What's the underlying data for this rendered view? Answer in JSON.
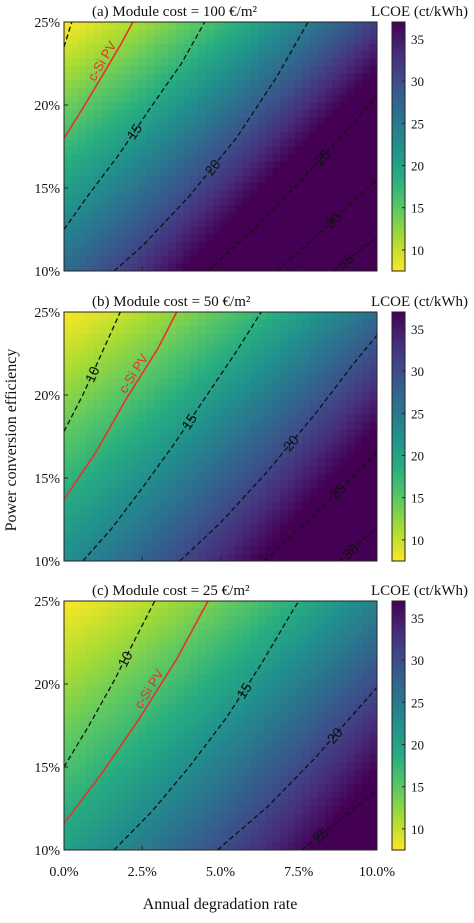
{
  "colors": {
    "colormap": [
      "#440154",
      "#472c7a",
      "#3b518b",
      "#2c718e",
      "#21908d",
      "#27ad81",
      "#5cc863",
      "#aadc32",
      "#fde725"
    ],
    "colormap_direction": "yellow = low LCOE, purple = high LCOE",
    "contour": "#111111",
    "csi_line": "#e8312a"
  },
  "chart_data": [
    {
      "type": "heatmap",
      "panel_label": "(a)",
      "title": "(a)  Module cost = 100 €/m²",
      "colorbar_label": "LCOE (ct/kWh)",
      "xlabel": "Annual degradation rate",
      "ylabel": "Power conversion efficiency",
      "x_range": [
        0.0,
        10.0
      ],
      "y_range": [
        10,
        25
      ],
      "x_ticks": [
        "0.0%",
        "2.5%",
        "5.0%",
        "7.5%",
        "10.0%"
      ],
      "y_ticks": [
        "25%",
        "20%",
        "15%",
        "10%"
      ],
      "colorbar_range": [
        7.5,
        37
      ],
      "colorbar_ticks": [
        "35",
        "30",
        "25",
        "20",
        "15",
        "10"
      ],
      "contours": [
        {
          "level": 10,
          "label": "",
          "points": [
            [
              0.0,
              23.5
            ],
            [
              0.25,
              25.0
            ]
          ]
        },
        {
          "level": 15,
          "label": "15",
          "points": [
            [
              0.0,
              12.5
            ],
            [
              0.75,
              14.5
            ],
            [
              1.75,
              17.0
            ],
            [
              2.75,
              19.8
            ],
            [
              3.75,
              22.5
            ],
            [
              4.5,
              25.0
            ]
          ]
        },
        {
          "level": 20,
          "label": "20",
          "points": [
            [
              1.6,
              10.0
            ],
            [
              2.5,
              11.5
            ],
            [
              4.0,
              14.5
            ],
            [
              5.5,
              18.0
            ],
            [
              6.8,
              21.7
            ],
            [
              7.8,
              25.0
            ]
          ]
        },
        {
          "level": 25,
          "label": "25",
          "points": [
            [
              4.6,
              10.0
            ],
            [
              6.0,
              12.4
            ],
            [
              7.5,
              15.3
            ],
            [
              9.0,
              18.4
            ],
            [
              10.0,
              20.5
            ]
          ]
        },
        {
          "level": 30,
          "label": "30",
          "points": [
            [
              6.8,
              10.0
            ],
            [
              8.0,
              12.0
            ],
            [
              9.2,
              14.1
            ],
            [
              10.0,
              15.5
            ]
          ]
        },
        {
          "level": 35,
          "label": "35",
          "points": [
            [
              8.6,
              10.0
            ],
            [
              9.4,
              11.2
            ],
            [
              10.0,
              12.0
            ]
          ]
        }
      ],
      "csi_pv": {
        "label": "c-Si PV",
        "points": [
          [
            0.0,
            18.0
          ],
          [
            0.6,
            19.8
          ],
          [
            1.2,
            21.7
          ],
          [
            1.8,
            23.6
          ],
          [
            2.2,
            25.0
          ]
        ]
      },
      "field": {
        "base": 7.5,
        "kx": 1.35,
        "kx2": 0.105,
        "ky": 1.28
      }
    },
    {
      "type": "heatmap",
      "panel_label": "(b)",
      "title": "(b)  Module cost = 50 €/m²",
      "colorbar_label": "LCOE (ct/kWh)",
      "xlabel": "Annual degradation rate",
      "ylabel": "Power conversion efficiency",
      "x_range": [
        0.0,
        10.0
      ],
      "y_range": [
        10,
        25
      ],
      "x_ticks": [
        "0.0%",
        "2.5%",
        "5.0%",
        "7.5%",
        "10.0%"
      ],
      "y_ticks": [
        "25%",
        "20%",
        "15%",
        "10%"
      ],
      "colorbar_range": [
        7.5,
        37
      ],
      "colorbar_ticks": [
        "35",
        "30",
        "25",
        "20",
        "15",
        "10"
      ],
      "contours": [
        {
          "level": 10,
          "label": "10",
          "points": [
            [
              0.0,
              17.8
            ],
            [
              0.6,
              20.0
            ],
            [
              1.2,
              22.5
            ],
            [
              1.8,
              25.0
            ]
          ]
        },
        {
          "level": 15,
          "label": "15",
          "points": [
            [
              0.6,
              10.0
            ],
            [
              1.5,
              11.9
            ],
            [
              2.5,
              14.4
            ],
            [
              3.5,
              17.0
            ],
            [
              4.5,
              19.8
            ],
            [
              5.5,
              22.6
            ],
            [
              6.3,
              25.0
            ]
          ]
        },
        {
          "level": 20,
          "label": "20",
          "points": [
            [
              3.7,
              10.0
            ],
            [
              5.0,
              12.3
            ],
            [
              6.5,
              15.4
            ],
            [
              8.0,
              18.8
            ],
            [
              9.3,
              22.0
            ],
            [
              10.0,
              23.6
            ]
          ]
        },
        {
          "level": 25,
          "label": "25",
          "points": [
            [
              6.4,
              10.0
            ],
            [
              8.0,
              12.8
            ],
            [
              9.5,
              15.6
            ],
            [
              10.0,
              16.6
            ]
          ]
        },
        {
          "level": 30,
          "label": "30",
          "points": [
            [
              8.8,
              10.0
            ],
            [
              9.5,
              11.2
            ],
            [
              10.0,
              12.0
            ]
          ]
        }
      ],
      "csi_pv": {
        "label": "c-Si PV",
        "points": [
          [
            0.0,
            13.7
          ],
          [
            1.0,
            16.5
          ],
          [
            2.0,
            19.8
          ],
          [
            3.0,
            22.8
          ],
          [
            3.6,
            25.0
          ]
        ]
      },
      "field": {
        "base": 7.5,
        "kx": 1.1,
        "kx2": 0.08,
        "ky": 1.0
      }
    },
    {
      "type": "heatmap",
      "panel_label": "(c)",
      "title": "(c)  Module cost = 25 €/m²",
      "colorbar_label": "LCOE (ct/kWh)",
      "xlabel": "Annual degradation rate",
      "ylabel": "Power conversion efficiency",
      "x_range": [
        0.0,
        10.0
      ],
      "y_range": [
        10,
        25
      ],
      "x_ticks": [
        "0.0%",
        "2.5%",
        "5.0%",
        "7.5%",
        "10.0%"
      ],
      "y_ticks": [
        "25%",
        "20%",
        "15%",
        "10%"
      ],
      "colorbar_range": [
        7.5,
        37
      ],
      "colorbar_ticks": [
        "35",
        "30",
        "25",
        "20",
        "15",
        "10"
      ],
      "contours": [
        {
          "level": 10,
          "label": "10",
          "points": [
            [
              0.0,
              15.0
            ],
            [
              0.8,
              17.5
            ],
            [
              1.6,
              20.2
            ],
            [
              2.3,
              22.8
            ],
            [
              2.9,
              25.0
            ]
          ]
        },
        {
          "level": 15,
          "label": "15",
          "points": [
            [
              1.6,
              10.0
            ],
            [
              2.8,
              12.3
            ],
            [
              4.0,
              15.0
            ],
            [
              5.2,
              18.0
            ],
            [
              6.3,
              21.2
            ],
            [
              7.3,
              24.4
            ],
            [
              7.5,
              25.0
            ]
          ]
        },
        {
          "level": 20,
          "label": "20",
          "points": [
            [
              4.9,
              10.0
            ],
            [
              6.5,
              12.6
            ],
            [
              8.0,
              15.5
            ],
            [
              9.3,
              18.3
            ],
            [
              10.0,
              19.8
            ]
          ]
        },
        {
          "level": 25,
          "label": "25",
          "points": [
            [
              7.6,
              10.0
            ],
            [
              8.8,
              11.8
            ],
            [
              10.0,
              13.6
            ]
          ]
        }
      ],
      "csi_pv": {
        "label": "c-Si PV",
        "points": [
          [
            0.0,
            11.6
          ],
          [
            1.2,
            14.6
          ],
          [
            2.4,
            17.9
          ],
          [
            3.6,
            21.5
          ],
          [
            4.6,
            25.0
          ]
        ]
      },
      "field": {
        "base": 7.5,
        "kx": 0.95,
        "kx2": 0.07,
        "ky": 0.85
      }
    }
  ]
}
